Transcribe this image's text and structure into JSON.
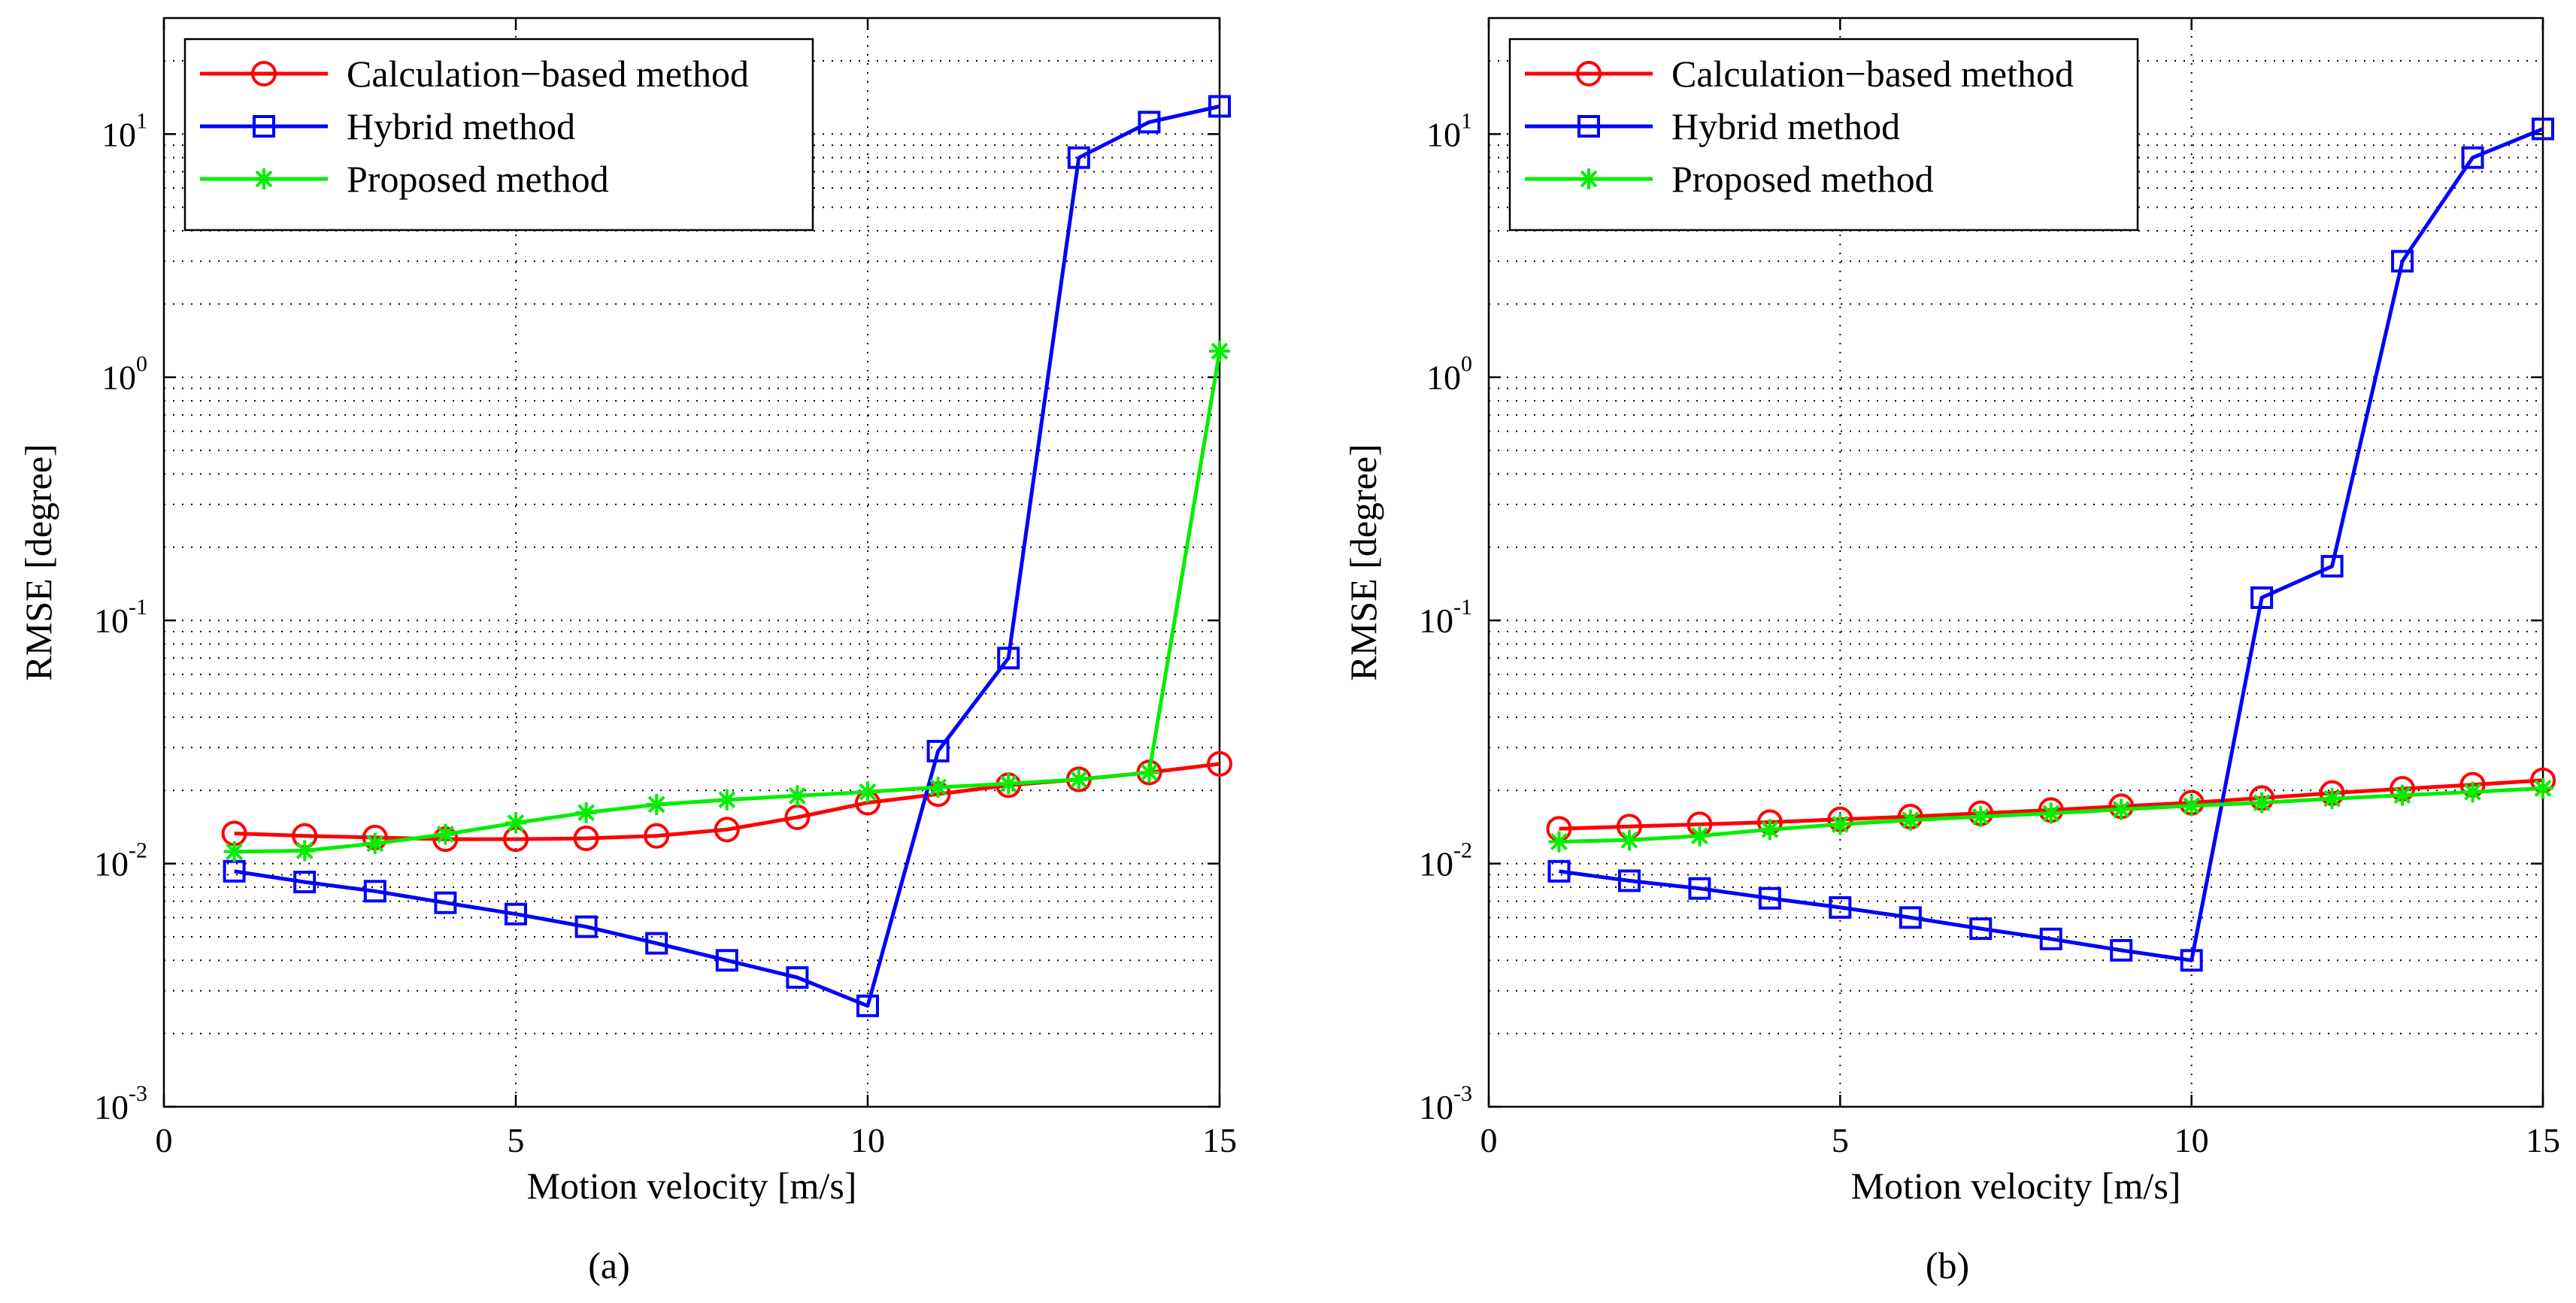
{
  "chart_data": [
    {
      "type": "line",
      "caption": "(a)",
      "xlabel": "Motion velocity [m/s]",
      "ylabel": "RMSE [degree]",
      "yscale": "log",
      "xlim": [
        0,
        15
      ],
      "ylim": [
        0.001,
        30
      ],
      "grid": true,
      "legend_position": "top-left",
      "x_ticks": [
        "0",
        "5",
        "10",
        "15"
      ],
      "y_ticks": [
        {
          "base": "10",
          "exp": "-3"
        },
        {
          "base": "10",
          "exp": "-2"
        },
        {
          "base": "10",
          "exp": "-1"
        },
        {
          "base": "10",
          "exp": "0"
        },
        {
          "base": "10",
          "exp": "1"
        }
      ],
      "x": [
        1,
        2,
        3,
        4,
        5,
        6,
        7,
        8,
        9,
        10,
        11,
        12,
        13,
        14,
        15
      ],
      "series": [
        {
          "name": "Calculation−based method",
          "color": "#ff0000",
          "marker": "circle",
          "values": [
            0.0133,
            0.013,
            0.0128,
            0.0126,
            0.0126,
            0.0127,
            0.013,
            0.0138,
            0.0155,
            0.0178,
            0.0193,
            0.021,
            0.0222,
            0.0237,
            0.0257
          ]
        },
        {
          "name": "Hybrid method",
          "color": "#0000ff",
          "marker": "square",
          "values": [
            0.0093,
            0.0084,
            0.0077,
            0.0069,
            0.0062,
            0.0055,
            0.0047,
            0.004,
            0.0034,
            0.0026,
            0.029,
            0.07,
            8.0,
            11.2,
            13.0
          ]
        },
        {
          "name": "Proposed method",
          "color": "#00ee00",
          "marker": "star",
          "values": [
            0.0112,
            0.0113,
            0.0121,
            0.0132,
            0.0147,
            0.0162,
            0.0175,
            0.0183,
            0.019,
            0.0197,
            0.0206,
            0.0213,
            0.0222,
            0.0237,
            1.28
          ]
        }
      ]
    },
    {
      "type": "line",
      "caption": "(b)",
      "xlabel": "Motion velocity [m/s]",
      "ylabel": "RMSE [degree]",
      "yscale": "log",
      "xlim": [
        0,
        15
      ],
      "ylim": [
        0.001,
        30
      ],
      "grid": true,
      "legend_position": "top-left",
      "x_ticks": [
        "0",
        "5",
        "10",
        "15"
      ],
      "y_ticks": [
        {
          "base": "10",
          "exp": "-3"
        },
        {
          "base": "10",
          "exp": "-2"
        },
        {
          "base": "10",
          "exp": "-1"
        },
        {
          "base": "10",
          "exp": "0"
        },
        {
          "base": "10",
          "exp": "1"
        }
      ],
      "x": [
        1,
        2,
        3,
        4,
        5,
        6,
        7,
        8,
        9,
        10,
        11,
        12,
        13,
        14,
        15
      ],
      "series": [
        {
          "name": "Calculation−based method",
          "color": "#ff0000",
          "marker": "circle",
          "values": [
            0.0139,
            0.0142,
            0.0145,
            0.0148,
            0.0152,
            0.0156,
            0.0161,
            0.0166,
            0.0172,
            0.0178,
            0.0186,
            0.0195,
            0.0203,
            0.0211,
            0.022
          ]
        },
        {
          "name": "Hybrid method",
          "color": "#0000ff",
          "marker": "square",
          "values": [
            0.0093,
            0.0085,
            0.0079,
            0.0072,
            0.0066,
            0.006,
            0.0054,
            0.0049,
            0.0044,
            0.004,
            0.124,
            0.167,
            3.0,
            8.0,
            10.5
          ]
        },
        {
          "name": "Proposed method",
          "color": "#00ee00",
          "marker": "star",
          "values": [
            0.0123,
            0.0125,
            0.013,
            0.0138,
            0.0145,
            0.0151,
            0.0156,
            0.0161,
            0.0167,
            0.0173,
            0.0178,
            0.0185,
            0.0191,
            0.0197,
            0.0204
          ]
        }
      ]
    }
  ]
}
